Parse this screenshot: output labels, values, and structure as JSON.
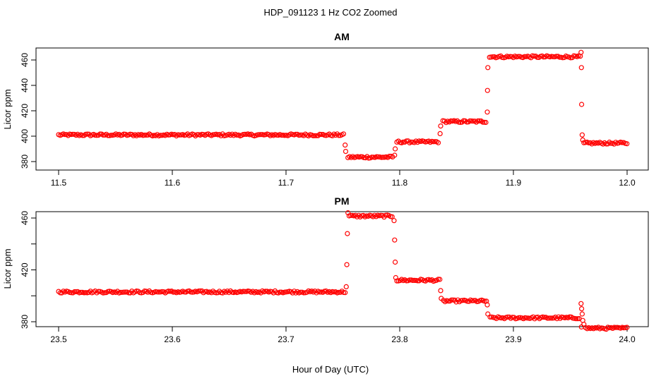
{
  "figure": {
    "title": "HDP_091123  1 Hz CO2 Zoomed",
    "xlabel": "Hour of Day (UTC)",
    "marker_color": "#ff0000"
  },
  "chart_data": [
    {
      "type": "scatter",
      "title": "AM",
      "xlabel": "Hour of Day (UTC)",
      "ylabel": "Licor ppm",
      "xlim": [
        11.5,
        12.0
      ],
      "ylim": [
        380,
        470
      ],
      "xticks": [
        11.5,
        11.6,
        11.7,
        11.8,
        11.9,
        12.0
      ],
      "xtick_labels": [
        "11.5",
        "11.6",
        "11.7",
        "11.8",
        "11.9",
        "12.0"
      ],
      "yticks": [
        380,
        400,
        420,
        440,
        460
      ],
      "ytick_labels": [
        "380",
        "400",
        "420",
        "440",
        "460"
      ],
      "grid": false,
      "marker": "open-circle",
      "series_color": "#ff0000",
      "plateaus": [
        {
          "x_start": 11.5,
          "x_end": 11.7515,
          "y": 401
        },
        {
          "x_start": 11.7545,
          "x_end": 11.7945,
          "y": 383.5
        },
        {
          "x_start": 11.7975,
          "x_end": 11.835,
          "y": 395.5
        },
        {
          "x_start": 11.838,
          "x_end": 11.8765,
          "y": 411.5
        },
        {
          "x_start": 11.879,
          "x_end": 11.959,
          "y": 462.5
        },
        {
          "x_start": 11.962,
          "x_end": 12.0,
          "y": 394.5
        }
      ],
      "transitions": [
        {
          "x": 11.752,
          "y": 393
        },
        {
          "x": 11.7525,
          "y": 388
        },
        {
          "x": 11.7955,
          "y": 385
        },
        {
          "x": 11.796,
          "y": 390
        },
        {
          "x": 11.8355,
          "y": 402
        },
        {
          "x": 11.836,
          "y": 408
        },
        {
          "x": 11.877,
          "y": 419
        },
        {
          "x": 11.8772,
          "y": 436
        },
        {
          "x": 11.8775,
          "y": 454
        },
        {
          "x": 11.9595,
          "y": 466
        },
        {
          "x": 11.9598,
          "y": 454
        },
        {
          "x": 11.96,
          "y": 425
        },
        {
          "x": 11.9605,
          "y": 401
        },
        {
          "x": 11.961,
          "y": 397
        }
      ]
    },
    {
      "type": "scatter",
      "title": "PM",
      "xlabel": "Hour of Day (UTC)",
      "ylabel": "Licor ppm",
      "xlim": [
        23.5,
        24.0
      ],
      "ylim": [
        370,
        468
      ],
      "xticks": [
        23.5,
        23.6,
        23.7,
        23.8,
        23.9,
        24.0
      ],
      "xtick_labels": [
        "23.5",
        "23.6",
        "23.7",
        "23.8",
        "23.9",
        "24.0"
      ],
      "yticks": [
        380,
        400,
        420,
        440,
        460
      ],
      "ytick_labels": [
        "380",
        "",
        "420",
        "",
        "460"
      ],
      "grid": false,
      "marker": "open-circle",
      "series_color": "#ff0000",
      "plateaus": [
        {
          "x_start": 23.5,
          "x_end": 23.7525,
          "y": 403
        },
        {
          "x_start": 23.7555,
          "x_end": 23.7945,
          "y": 461.5
        },
        {
          "x_start": 23.7975,
          "x_end": 23.8355,
          "y": 412
        },
        {
          "x_start": 23.8385,
          "x_end": 23.8765,
          "y": 396
        },
        {
          "x_start": 23.8795,
          "x_end": 23.959,
          "y": 383
        },
        {
          "x_start": 23.9635,
          "x_end": 24.0,
          "y": 375
        }
      ],
      "transitions": [
        {
          "x": 23.753,
          "y": 407
        },
        {
          "x": 23.7535,
          "y": 424
        },
        {
          "x": 23.754,
          "y": 448
        },
        {
          "x": 23.7545,
          "y": 464
        },
        {
          "x": 23.795,
          "y": 458
        },
        {
          "x": 23.7955,
          "y": 443
        },
        {
          "x": 23.796,
          "y": 426
        },
        {
          "x": 23.7965,
          "y": 414
        },
        {
          "x": 23.836,
          "y": 404
        },
        {
          "x": 23.8365,
          "y": 398
        },
        {
          "x": 23.877,
          "y": 393
        },
        {
          "x": 23.8775,
          "y": 386
        },
        {
          "x": 23.9595,
          "y": 394
        },
        {
          "x": 23.96,
          "y": 390
        },
        {
          "x": 23.9605,
          "y": 386
        },
        {
          "x": 23.961,
          "y": 381
        },
        {
          "x": 23.9598,
          "y": 376
        },
        {
          "x": 23.962,
          "y": 378
        }
      ]
    }
  ]
}
